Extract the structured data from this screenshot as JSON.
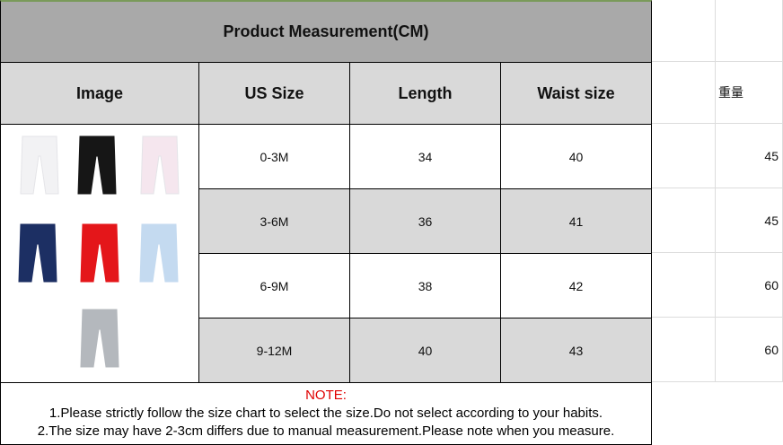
{
  "title": "Product Measurement(CM)",
  "headers": [
    "Image",
    "US Size",
    "Length",
    "Waist size"
  ],
  "extra_header": "重量",
  "rows": [
    {
      "size": "0-3M",
      "length": "34",
      "waist": "40",
      "weight": "45"
    },
    {
      "size": "3-6M",
      "length": "36",
      "waist": "41",
      "weight": "45"
    },
    {
      "size": "6-9M",
      "length": "38",
      "waist": "42",
      "weight": "60"
    },
    {
      "size": "9-12M",
      "length": "40",
      "waist": "43",
      "weight": "60"
    }
  ],
  "product_colors": [
    "#f2f2f4",
    "#161616",
    "#f5e6ee",
    "#1c2f63",
    "#e4161a",
    "#c4daf0",
    "#b4b8bd"
  ],
  "note": {
    "heading": "NOTE:",
    "line1": "1.Please strictly follow the size chart to select the size.Do not select according to your habits.",
    "line2": "2.The size may have 2-3cm differs due to manual measurement.Please note when you measure."
  },
  "colors": {
    "title_bg": "#a9a9a9",
    "header_bg": "#d9d9d9",
    "note_heading": "#e00000"
  }
}
